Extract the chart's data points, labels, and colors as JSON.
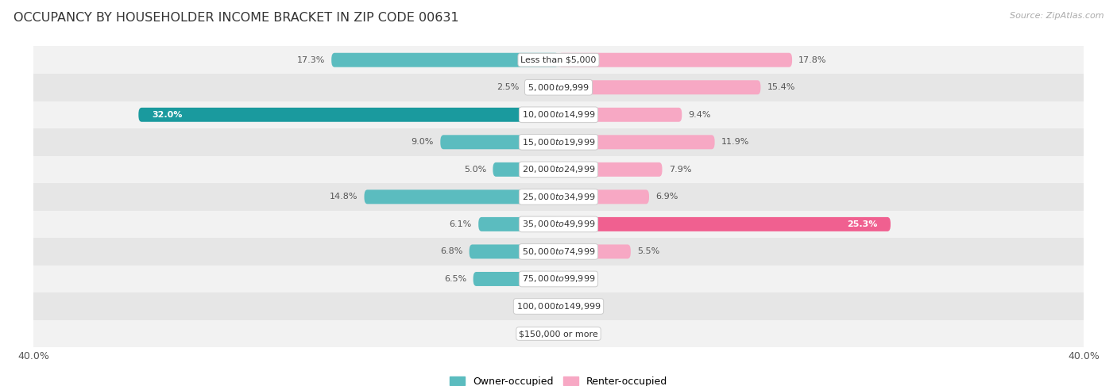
{
  "title": "OCCUPANCY BY HOUSEHOLDER INCOME BRACKET IN ZIP CODE 00631",
  "source": "Source: ZipAtlas.com",
  "categories": [
    "Less than $5,000",
    "$5,000 to $9,999",
    "$10,000 to $14,999",
    "$15,000 to $19,999",
    "$20,000 to $24,999",
    "$25,000 to $34,999",
    "$35,000 to $49,999",
    "$50,000 to $74,999",
    "$75,000 to $99,999",
    "$100,000 to $149,999",
    "$150,000 or more"
  ],
  "owner_values": [
    17.3,
    2.5,
    32.0,
    9.0,
    5.0,
    14.8,
    6.1,
    6.8,
    6.5,
    0.0,
    0.0
  ],
  "renter_values": [
    17.8,
    15.4,
    9.4,
    11.9,
    7.9,
    6.9,
    25.3,
    5.5,
    0.0,
    0.0,
    0.0
  ],
  "owner_color_normal": "#5bbcbf",
  "owner_color_highlight": "#1a9a9e",
  "renter_color_normal": "#f7a8c4",
  "renter_color_highlight": "#f06090",
  "owner_highlight_idx": 2,
  "renter_highlight_idx": 6,
  "axis_limit": 40.0,
  "bar_height": 0.52,
  "row_bg_color_odd": "#f2f2f2",
  "row_bg_color_even": "#e6e6e6",
  "legend_owner": "Owner-occupied",
  "legend_renter": "Renter-occupied",
  "title_fontsize": 11.5,
  "axis_label_fontsize": 9,
  "bar_label_fontsize": 8,
  "category_fontsize": 8
}
